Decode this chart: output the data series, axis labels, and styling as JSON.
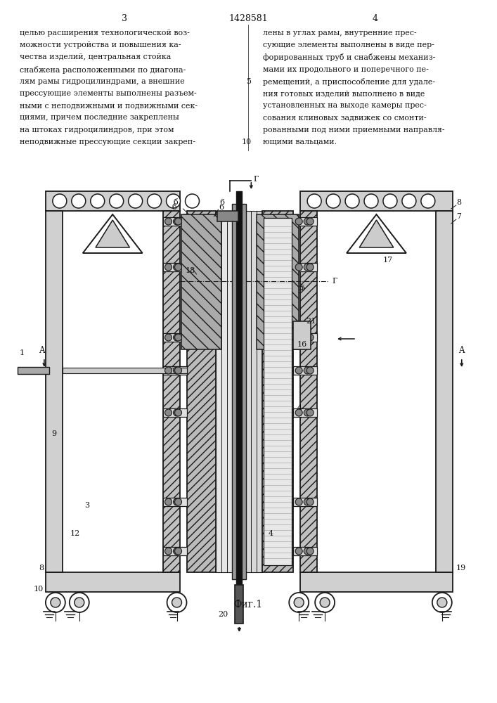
{
  "page_number_left": "3",
  "patent_number": "1428581",
  "page_number_right": "4",
  "text_left_lines": [
    "целью расширения технологической воз-",
    "можности устройства и повышения ка-",
    "чества изделий, центральная стойка",
    "снабжена расположенными по диагона-",
    "лям рамы гидроцилиндрами, а внешние",
    "прессующие элементы выполнены разъем-",
    "ными с неподвижными и подвижными сек-",
    "циями, причем последние закреплены",
    "на штоках гидроцилиндров, при этом",
    "неподвижные прессующие секции закреп-"
  ],
  "text_right_lines": [
    "лены в углах рамы, внутренние прес-",
    "сующие элементы выполнены в виде пер-",
    "форированных труб и снабжены механиз-",
    "мами их продольного и поперечного пе-",
    "ремещений, а приспособление для удале-",
    "ния готовых изделий выполнено в виде",
    "установленных на выходе камеры прес-",
    "сования клиновых задвижек со смонти-",
    "рованными под ними приемными направля-",
    "ющими вальцами."
  ],
  "line_num_5_idx": 4,
  "line_num_10_idx": 9,
  "caption": "Фиг.1",
  "bg_color": "#ffffff",
  "text_color": "#111111",
  "draw_color": "#1a1a1a",
  "hatch_color": "#333333",
  "fill_light": "#d0d0d0",
  "fill_dark": "#444444",
  "fill_med": "#888888"
}
